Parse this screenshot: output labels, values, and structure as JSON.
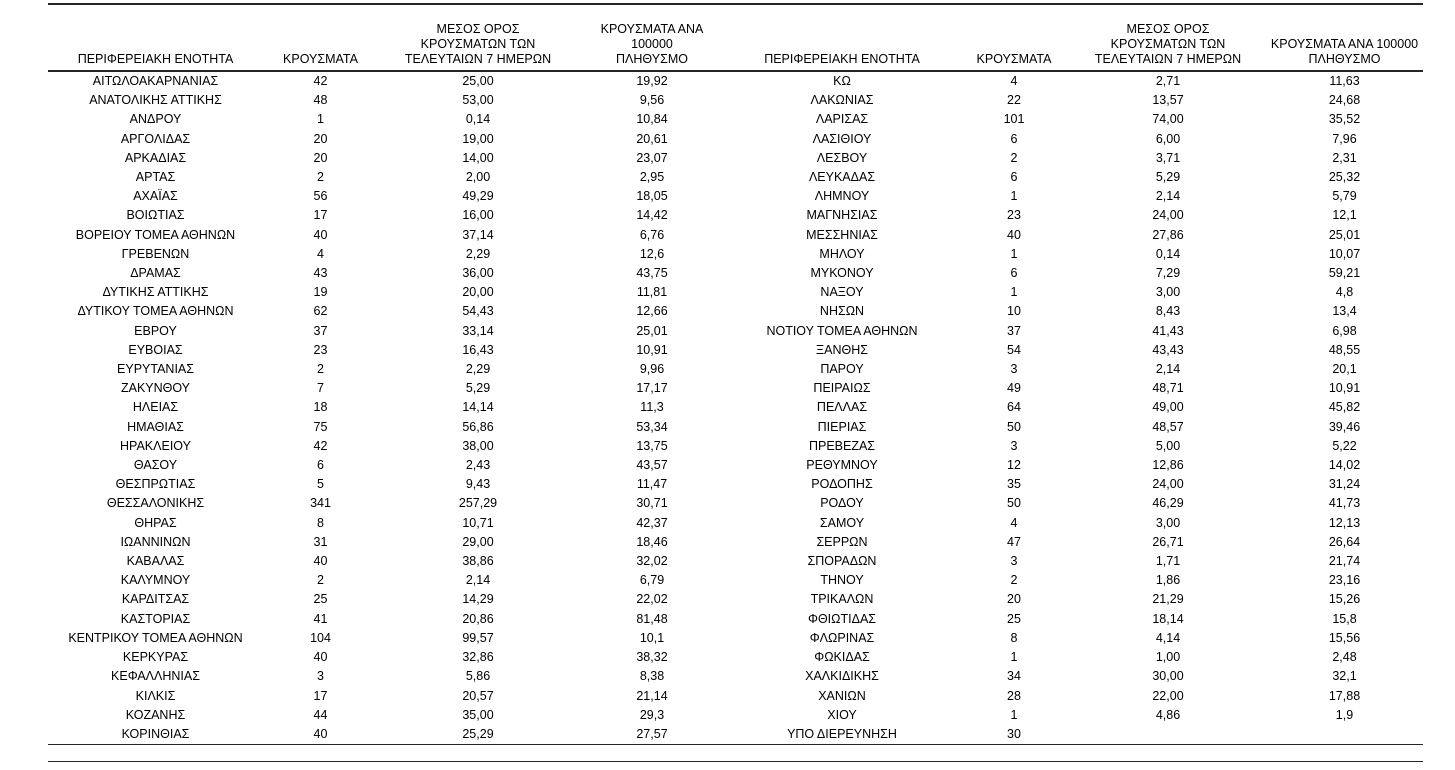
{
  "colors": {
    "text": "#000000",
    "rule": "#262626",
    "background": "#ffffff"
  },
  "table": {
    "headers": [
      "ΠΕΡΙΦΕΡΕΙΑΚΗ ΕΝΟΤΗΤΑ",
      "ΚΡΟΥΣΜΑΤΑ",
      "ΜΕΣΟΣ ΟΡΟΣ\nΚΡΟΥΣΜΑΤΩΝ ΤΩΝ\nΤΕΛΕΥΤΑΙΩΝ 7 ΗΜΕΡΩΝ",
      "ΚΡΟΥΣΜΑΤΑ ΑΝΑ 100000\nΠΛΗΘΥΣΜΟ"
    ],
    "left_rows": [
      [
        "ΑΙΤΩΛΟΑΚΑΡΝΑΝΙΑΣ",
        "42",
        "25,00",
        "19,92"
      ],
      [
        "ΑΝΑΤΟΛΙΚΗΣ ΑΤΤΙΚΗΣ",
        "48",
        "53,00",
        "9,56"
      ],
      [
        "ΑΝΔΡΟΥ",
        "1",
        "0,14",
        "10,84"
      ],
      [
        "ΑΡΓΟΛΙΔΑΣ",
        "20",
        "19,00",
        "20,61"
      ],
      [
        "ΑΡΚΑΔΙΑΣ",
        "20",
        "14,00",
        "23,07"
      ],
      [
        "ΑΡΤΑΣ",
        "2",
        "2,00",
        "2,95"
      ],
      [
        "ΑΧΑΪΑΣ",
        "56",
        "49,29",
        "18,05"
      ],
      [
        "ΒΟΙΩΤΙΑΣ",
        "17",
        "16,00",
        "14,42"
      ],
      [
        "ΒΟΡΕΙΟΥ ΤΟΜΕΑ ΑΘΗΝΩΝ",
        "40",
        "37,14",
        "6,76"
      ],
      [
        "ΓΡΕΒΕΝΩΝ",
        "4",
        "2,29",
        "12,6"
      ],
      [
        "ΔΡΑΜΑΣ",
        "43",
        "36,00",
        "43,75"
      ],
      [
        "ΔΥΤΙΚΗΣ ΑΤΤΙΚΗΣ",
        "19",
        "20,00",
        "11,81"
      ],
      [
        "ΔΥΤΙΚΟΥ ΤΟΜΕΑ ΑΘΗΝΩΝ",
        "62",
        "54,43",
        "12,66"
      ],
      [
        "ΕΒΡΟΥ",
        "37",
        "33,14",
        "25,01"
      ],
      [
        "ΕΥΒΟΙΑΣ",
        "23",
        "16,43",
        "10,91"
      ],
      [
        "ΕΥΡΥΤΑΝΙΑΣ",
        "2",
        "2,29",
        "9,96"
      ],
      [
        "ΖΑΚΥΝΘΟΥ",
        "7",
        "5,29",
        "17,17"
      ],
      [
        "ΗΛΕΙΑΣ",
        "18",
        "14,14",
        "11,3"
      ],
      [
        "ΗΜΑΘΙΑΣ",
        "75",
        "56,86",
        "53,34"
      ],
      [
        "ΗΡΑΚΛΕΙΟΥ",
        "42",
        "38,00",
        "13,75"
      ],
      [
        "ΘΑΣΟΥ",
        "6",
        "2,43",
        "43,57"
      ],
      [
        "ΘΕΣΠΡΩΤΙΑΣ",
        "5",
        "9,43",
        "11,47"
      ],
      [
        "ΘΕΣΣΑΛΟΝΙΚΗΣ",
        "341",
        "257,29",
        "30,71"
      ],
      [
        "ΘΗΡΑΣ",
        "8",
        "10,71",
        "42,37"
      ],
      [
        "ΙΩΑΝΝΙΝΩΝ",
        "31",
        "29,00",
        "18,46"
      ],
      [
        "ΚΑΒΑΛΑΣ",
        "40",
        "38,86",
        "32,02"
      ],
      [
        "ΚΑΛΥΜΝΟΥ",
        "2",
        "2,14",
        "6,79"
      ],
      [
        "ΚΑΡΔΙΤΣΑΣ",
        "25",
        "14,29",
        "22,02"
      ],
      [
        "ΚΑΣΤΟΡΙΑΣ",
        "41",
        "20,86",
        "81,48"
      ],
      [
        "ΚΕΝΤΡΙΚΟΥ ΤΟΜΕΑ ΑΘΗΝΩΝ",
        "104",
        "99,57",
        "10,1"
      ],
      [
        "ΚΕΡΚΥΡΑΣ",
        "40",
        "32,86",
        "38,32"
      ],
      [
        "ΚΕΦΑΛΛΗΝΙΑΣ",
        "3",
        "5,86",
        "8,38"
      ],
      [
        "ΚΙΛΚΙΣ",
        "17",
        "20,57",
        "21,14"
      ],
      [
        "ΚΟΖΑΝΗΣ",
        "44",
        "35,00",
        "29,3"
      ],
      [
        "ΚΟΡΙΝΘΙΑΣ",
        "40",
        "25,29",
        "27,57"
      ]
    ],
    "right_rows": [
      [
        "ΚΩ",
        "4",
        "2,71",
        "11,63"
      ],
      [
        "ΛΑΚΩΝΙΑΣ",
        "22",
        "13,57",
        "24,68"
      ],
      [
        "ΛΑΡΙΣΑΣ",
        "101",
        "74,00",
        "35,52"
      ],
      [
        "ΛΑΣΙΘΙΟΥ",
        "6",
        "6,00",
        "7,96"
      ],
      [
        "ΛΕΣΒΟΥ",
        "2",
        "3,71",
        "2,31"
      ],
      [
        "ΛΕΥΚΑΔΑΣ",
        "6",
        "5,29",
        "25,32"
      ],
      [
        "ΛΗΜΝΟΥ",
        "1",
        "2,14",
        "5,79"
      ],
      [
        "ΜΑΓΝΗΣΙΑΣ",
        "23",
        "24,00",
        "12,1"
      ],
      [
        "ΜΕΣΣΗΝΙΑΣ",
        "40",
        "27,86",
        "25,01"
      ],
      [
        "ΜΗΛΟΥ",
        "1",
        "0,14",
        "10,07"
      ],
      [
        "ΜΥΚΟΝΟΥ",
        "6",
        "7,29",
        "59,21"
      ],
      [
        "ΝΑΞΟΥ",
        "1",
        "3,00",
        "4,8"
      ],
      [
        "ΝΗΣΩΝ",
        "10",
        "8,43",
        "13,4"
      ],
      [
        "ΝΟΤΙΟΥ ΤΟΜΕΑ ΑΘΗΝΩΝ",
        "37",
        "41,43",
        "6,98"
      ],
      [
        "ΞΑΝΘΗΣ",
        "54",
        "43,43",
        "48,55"
      ],
      [
        "ΠΑΡΟΥ",
        "3",
        "2,14",
        "20,1"
      ],
      [
        "ΠΕΙΡΑΙΩΣ",
        "49",
        "48,71",
        "10,91"
      ],
      [
        "ΠΕΛΛΑΣ",
        "64",
        "49,00",
        "45,82"
      ],
      [
        "ΠΙΕΡΙΑΣ",
        "50",
        "48,57",
        "39,46"
      ],
      [
        "ΠΡΕΒΕΖΑΣ",
        "3",
        "5,00",
        "5,22"
      ],
      [
        "ΡΕΘΥΜΝΟΥ",
        "12",
        "12,86",
        "14,02"
      ],
      [
        "ΡΟΔΟΠΗΣ",
        "35",
        "24,00",
        "31,24"
      ],
      [
        "ΡΟΔΟΥ",
        "50",
        "46,29",
        "41,73"
      ],
      [
        "ΣΑΜΟΥ",
        "4",
        "3,00",
        "12,13"
      ],
      [
        "ΣΕΡΡΩΝ",
        "47",
        "26,71",
        "26,64"
      ],
      [
        "ΣΠΟΡΑΔΩΝ",
        "3",
        "1,71",
        "21,74"
      ],
      [
        "ΤΗΝΟΥ",
        "2",
        "1,86",
        "23,16"
      ],
      [
        "ΤΡΙΚΑΛΩΝ",
        "20",
        "21,29",
        "15,26"
      ],
      [
        "ΦΘΙΩΤΙΔΑΣ",
        "25",
        "18,14",
        "15,8"
      ],
      [
        "ΦΛΩΡΙΝΑΣ",
        "8",
        "4,14",
        "15,56"
      ],
      [
        "ΦΩΚΙΔΑΣ",
        "1",
        "1,00",
        "2,48"
      ],
      [
        "ΧΑΛΚΙΔΙΚΗΣ",
        "34",
        "30,00",
        "32,1"
      ],
      [
        "ΧΑΝΙΩΝ",
        "28",
        "22,00",
        "17,88"
      ],
      [
        "ΧΙΟΥ",
        "1",
        "4,86",
        "1,9"
      ],
      [
        "ΥΠΟ ΔΙΕΡΕΥΝΗΣΗ",
        "30",
        "",
        ""
      ]
    ]
  }
}
